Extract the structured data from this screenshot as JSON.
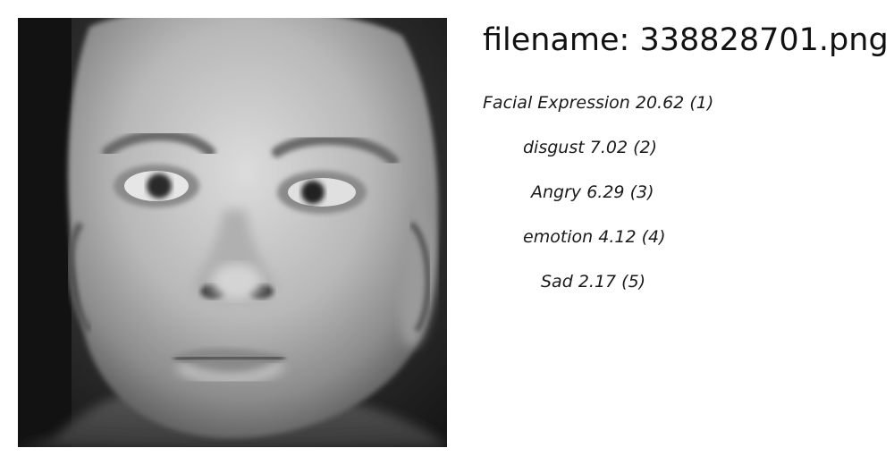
{
  "file": {
    "label": "filename:",
    "name": "338828701.png"
  },
  "image": {
    "icon": "face-photo-icon"
  },
  "predictions": [
    {
      "label": "Facial Expression",
      "score": "20.62",
      "rank": "(1)"
    },
    {
      "label": "disgust",
      "score": "7.02",
      "rank": "(2)"
    },
    {
      "label": "Angry",
      "score": "6.29",
      "rank": "(3)"
    },
    {
      "label": "emotion",
      "score": "4.12",
      "rank": "(4)"
    },
    {
      "label": "Sad",
      "score": "2.17",
      "rank": "(5)"
    }
  ]
}
